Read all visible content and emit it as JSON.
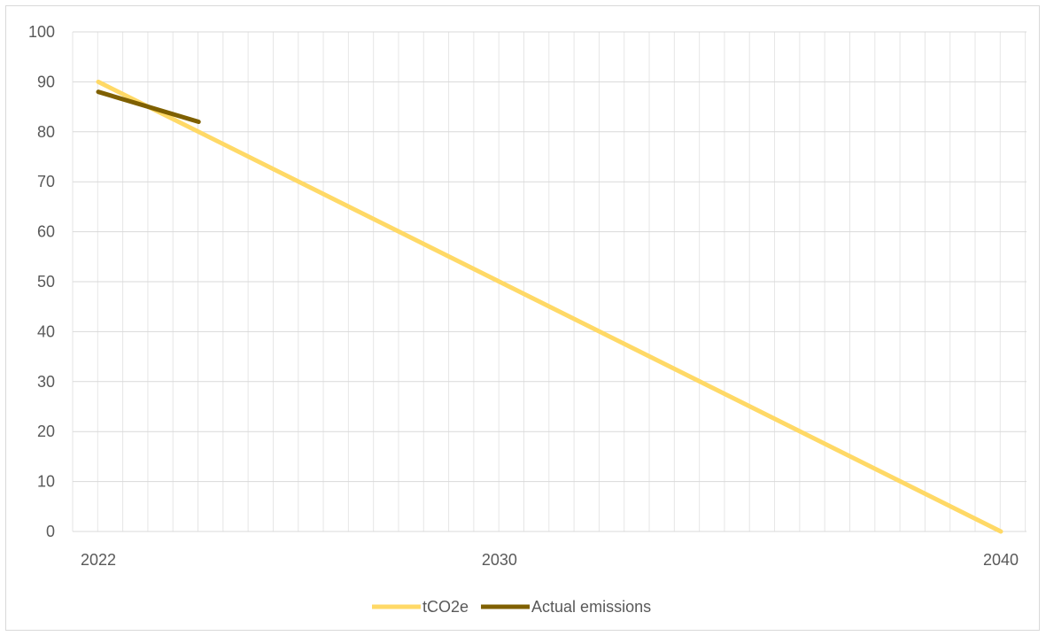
{
  "chart_data": {
    "type": "line",
    "x_min": 2022,
    "x_max": 2040,
    "x_ticks": [
      "2022",
      "2030",
      "2040"
    ],
    "ylim": [
      0,
      100
    ],
    "y_ticks": [
      "0",
      "10",
      "20",
      "30",
      "40",
      "50",
      "60",
      "70",
      "80",
      "90",
      "100"
    ],
    "grid": true,
    "legend_position": "bottom",
    "series": [
      {
        "name": "tCO2e",
        "color": "#ffd966",
        "points": [
          {
            "x": 2022,
            "y": 90
          },
          {
            "x": 2040,
            "y": 0
          }
        ]
      },
      {
        "name": "Actual emissions",
        "color": "#7f6000",
        "points": [
          {
            "x": 2022,
            "y": 88
          },
          {
            "x": 2024,
            "y": 82
          }
        ]
      }
    ]
  }
}
